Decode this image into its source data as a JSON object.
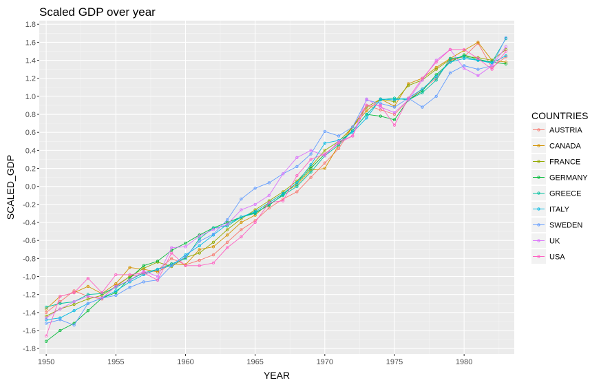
{
  "chart_data": {
    "type": "line",
    "title": "Scaled GDP over year",
    "xlabel": "YEAR",
    "ylabel": "SCALED_GDP",
    "xlim": [
      1949.5,
      1983.6
    ],
    "ylim": [
      -1.86,
      1.84
    ],
    "xticks": [
      1950,
      1955,
      1960,
      1965,
      1970,
      1975,
      1980
    ],
    "yticks": [
      -1.8,
      -1.6,
      -1.4,
      -1.2,
      -1.0,
      -0.8,
      -0.6,
      -0.4,
      -0.2,
      0.0,
      0.2,
      0.4,
      0.6,
      0.8,
      1.0,
      1.2,
      1.4,
      1.6,
      1.8
    ],
    "ytick_labels": [
      "-1.8",
      "-1.6",
      "-1.4",
      "-1.2",
      "-1.0",
      "-0.8",
      "-0.6",
      "-0.4",
      "-0.2",
      "0.0",
      "0.2",
      "0.4",
      "0.6",
      "0.8",
      "1.0",
      "1.2",
      "1.4",
      "1.6",
      "1.8"
    ],
    "grid": true,
    "legend": {
      "title": "COUNTRIES",
      "placement": "right"
    },
    "x": [
      1950,
      1951,
      1952,
      1953,
      1954,
      1955,
      1956,
      1957,
      1958,
      1959,
      1960,
      1961,
      1962,
      1963,
      1964,
      1965,
      1966,
      1967,
      1968,
      1969,
      1970,
      1971,
      1972,
      1973,
      1974,
      1975,
      1976,
      1977,
      1978,
      1979,
      1980,
      1981,
      1982,
      1983
    ],
    "series": [
      {
        "name": "AUSTRIA",
        "color": "#F8766D",
        "values": [
          -1.4,
          -1.28,
          -1.16,
          -1.22,
          -1.25,
          -1.1,
          -1.0,
          -0.97,
          -0.93,
          -0.8,
          -0.87,
          -0.82,
          -0.76,
          -0.62,
          -0.48,
          -0.38,
          -0.24,
          -0.14,
          -0.06,
          0.1,
          0.26,
          0.42,
          0.66,
          0.9,
          0.85,
          0.8,
          0.96,
          1.08,
          1.2,
          1.4,
          1.44,
          1.59,
          1.32,
          1.44
        ]
      },
      {
        "name": "CANADA",
        "color": "#D39200",
        "values": [
          -1.36,
          -1.22,
          -1.18,
          -1.11,
          -1.19,
          -1.08,
          -0.9,
          -0.92,
          -0.95,
          -0.86,
          -0.87,
          -0.7,
          -0.67,
          -0.54,
          -0.4,
          -0.32,
          -0.18,
          -0.08,
          0.02,
          0.18,
          0.2,
          0.46,
          0.66,
          0.84,
          0.97,
          0.89,
          1.14,
          1.2,
          1.32,
          1.42,
          1.51,
          1.6,
          1.4,
          1.38
        ]
      },
      {
        "name": "FRANCE",
        "color": "#93AA00",
        "values": [
          -1.44,
          -1.36,
          -1.31,
          -1.25,
          -1.21,
          -1.11,
          -1.0,
          -0.91,
          -0.84,
          -0.89,
          -0.79,
          -0.74,
          -0.62,
          -0.48,
          -0.36,
          -0.26,
          -0.16,
          -0.06,
          0.06,
          0.22,
          0.4,
          0.5,
          0.66,
          0.88,
          0.97,
          0.94,
          1.12,
          1.18,
          1.3,
          1.41,
          1.44,
          1.43,
          1.4,
          1.52
        ]
      },
      {
        "name": "GERMANY",
        "color": "#00BA38",
        "values": [
          -1.72,
          -1.6,
          -1.52,
          -1.38,
          -1.24,
          -1.18,
          -1.02,
          -0.88,
          -0.83,
          -0.71,
          -0.63,
          -0.54,
          -0.46,
          -0.4,
          -0.34,
          -0.29,
          -0.21,
          -0.09,
          0.04,
          0.2,
          0.36,
          0.48,
          0.62,
          0.8,
          0.78,
          0.74,
          0.96,
          1.06,
          1.24,
          1.38,
          1.46,
          1.41,
          1.38,
          1.36
        ]
      },
      {
        "name": "GREECE",
        "color": "#00C19F",
        "values": [
          -1.34,
          -1.3,
          -1.28,
          -1.2,
          -1.19,
          -1.12,
          -1.04,
          -0.96,
          -0.92,
          -0.86,
          -0.8,
          -0.58,
          -0.46,
          -0.44,
          -0.34,
          -0.3,
          -0.2,
          -0.1,
          0.0,
          0.16,
          0.34,
          0.46,
          0.62,
          0.8,
          0.96,
          0.98,
          0.96,
          1.04,
          1.18,
          1.42,
          1.44,
          1.4,
          1.38,
          1.64
        ]
      },
      {
        "name": "ITALY",
        "color": "#00B9E3",
        "values": [
          -1.48,
          -1.46,
          -1.38,
          -1.3,
          -1.24,
          -1.16,
          -1.06,
          -0.98,
          -0.92,
          -0.88,
          -0.76,
          -0.66,
          -0.54,
          -0.42,
          -0.34,
          -0.28,
          -0.18,
          -0.08,
          0.04,
          0.24,
          0.48,
          0.51,
          0.6,
          0.76,
          0.97,
          0.96,
          0.98,
          1.08,
          1.22,
          1.38,
          1.42,
          1.4,
          1.37,
          1.45
        ]
      },
      {
        "name": "SWEDEN",
        "color": "#619CFF",
        "values": [
          -1.52,
          -1.48,
          -1.54,
          -1.3,
          -1.24,
          -1.21,
          -1.12,
          -1.06,
          -1.04,
          -0.88,
          -0.78,
          -0.61,
          -0.53,
          -0.37,
          -0.14,
          -0.02,
          0.04,
          0.14,
          0.22,
          0.36,
          0.61,
          0.56,
          0.66,
          0.96,
          0.92,
          0.88,
          0.98,
          0.88,
          1.0,
          1.26,
          1.34,
          1.3,
          1.34,
          1.65
        ]
      },
      {
        "name": "UK",
        "color": "#DB72FB",
        "values": [
          -1.46,
          -1.36,
          -1.28,
          -1.22,
          -1.24,
          -1.11,
          -1.04,
          -0.94,
          -1.0,
          -0.68,
          -0.67,
          -0.55,
          -0.48,
          -0.42,
          -0.26,
          -0.2,
          -0.1,
          0.14,
          0.32,
          0.4,
          0.34,
          0.5,
          0.56,
          0.97,
          0.88,
          0.82,
          0.96,
          1.18,
          1.4,
          1.52,
          1.31,
          1.23,
          1.34,
          1.55
        ]
      },
      {
        "name": "USA",
        "color": "#FF61C3",
        "values": [
          -1.66,
          -1.22,
          -1.18,
          -1.02,
          -1.18,
          -0.98,
          -0.98,
          -0.96,
          -1.04,
          -0.74,
          -0.88,
          -0.88,
          -0.85,
          -0.68,
          -0.56,
          -0.4,
          -0.18,
          -0.16,
          0.12,
          0.3,
          0.36,
          0.48,
          0.56,
          0.9,
          0.9,
          0.68,
          0.98,
          1.2,
          1.38,
          1.52,
          1.52,
          1.42,
          1.3,
          1.5
        ]
      }
    ]
  }
}
